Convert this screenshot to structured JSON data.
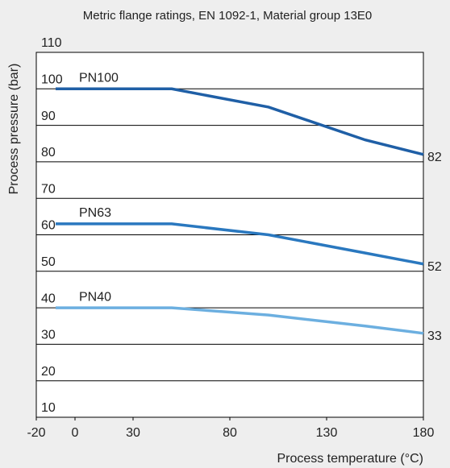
{
  "chart_data": {
    "type": "line",
    "title": "Metric flange ratings, EN 1092-1, Material group 13E0",
    "x_label": "Process temperature (°C)",
    "y_label": "Process pressure (bar)",
    "x": [
      -10,
      50,
      100,
      150,
      180
    ],
    "series": [
      {
        "name": "PN100",
        "color": "#1f5fa6",
        "values": [
          100,
          100,
          95,
          86,
          82
        ]
      },
      {
        "name": "PN63",
        "color": "#2a78bf",
        "values": [
          63,
          63,
          60,
          55,
          52
        ]
      },
      {
        "name": "PN40",
        "color": "#6cafe0",
        "values": [
          40,
          40,
          38,
          35,
          33
        ]
      }
    ],
    "xlim": [
      -20,
      180
    ],
    "xticks": [
      -20,
      0,
      30,
      80,
      130,
      180
    ],
    "ylim": [
      10,
      110
    ],
    "yticks": [
      10,
      20,
      30,
      40,
      50,
      60,
      70,
      80,
      90,
      100,
      110
    ],
    "grid": true
  }
}
